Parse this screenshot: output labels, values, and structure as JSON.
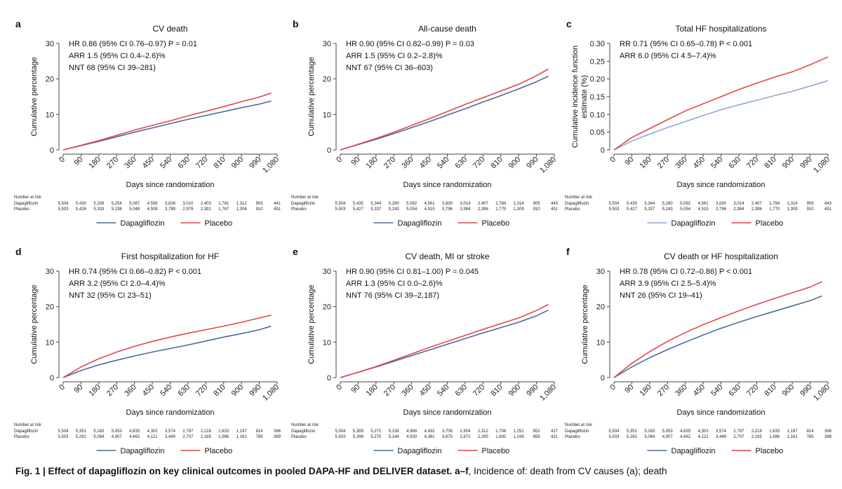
{
  "chart_data": [
    {
      "letter": "a",
      "type": "line",
      "title": "CV death",
      "stats": [
        "HR 0.86 (95% CI 0.76–0.97) P = 0.01",
        "ARR 1.5 (95% CI 0.4–2.6)%",
        "NNT 68 (95% CI 39–281)"
      ],
      "xlabel": "Days since randomization",
      "ylabel": "Cumulative percentage",
      "x_ticks": [
        "0",
        "90",
        "180",
        "270",
        "360",
        "450",
        "540",
        "630",
        "720",
        "810",
        "900",
        "990",
        "1,080"
      ],
      "y_ticks": [
        "0",
        "10",
        "20",
        "30"
      ],
      "xlim": [
        0,
        1080
      ],
      "ylim": [
        0,
        30
      ],
      "x": [
        0,
        90,
        180,
        270,
        360,
        450,
        540,
        630,
        720,
        810,
        900,
        990,
        1050
      ],
      "series": [
        {
          "name": "Dapagliflozin",
          "color": "#4a6a9a",
          "values": [
            0,
            1.2,
            2.4,
            3.7,
            5.0,
            6.2,
            7.4,
            8.6,
            9.7,
            10.8,
            11.9,
            12.9,
            13.8
          ]
        },
        {
          "name": "Placebo",
          "color": "#e0474c",
          "values": [
            0,
            1.3,
            2.6,
            4.1,
            5.6,
            6.9,
            8.2,
            9.6,
            10.9,
            12.2,
            13.6,
            14.9,
            16.0
          ]
        }
      ],
      "risk": {
        "label": "Number at risk",
        "rows": [
          {
            "name": "Dapagliflozin",
            "values": [
              "5,504",
              "5,430",
              "5,339",
              "5,254",
              "5,087",
              "4,556",
              "3,826",
              "3,010",
              "2,403",
              "1,781",
              "1,312",
              "903",
              "441"
            ]
          },
          {
            "name": "Placebo",
            "values": [
              "5,503",
              "5,426",
              "5,333",
              "5,238",
              "5,048",
              "4,508",
              "3,789",
              "2,978",
              "2,391",
              "1,767",
              "1,306",
              "910",
              "451"
            ]
          }
        ]
      },
      "legend": [
        "Dapagliflozin",
        "Placebo"
      ]
    },
    {
      "letter": "b",
      "type": "line",
      "title": "All-cause death",
      "stats": [
        "HR 0.90 (95% CI 0.82–0.99) P = 0.03",
        "ARR 1.5 (95% CI 0.2–2.8)%",
        "NNT 67 (95% CI 36–603)"
      ],
      "xlabel": "Days since randomization",
      "ylabel": "Cumulative percentage",
      "x_ticks": [
        "0",
        "90",
        "180",
        "270",
        "360",
        "450",
        "540",
        "630",
        "720",
        "810",
        "900",
        "990",
        "1,080"
      ],
      "y_ticks": [
        "0",
        "10",
        "20",
        "30"
      ],
      "xlim": [
        0,
        1080
      ],
      "ylim": [
        0,
        30
      ],
      "x": [
        0,
        90,
        180,
        270,
        360,
        450,
        540,
        630,
        720,
        810,
        900,
        990,
        1050
      ],
      "series": [
        {
          "name": "Dapagliflozin",
          "color": "#4a6a9a",
          "values": [
            0,
            1.5,
            3.0,
            4.6,
            6.3,
            8.0,
            9.8,
            11.6,
            13.5,
            15.3,
            17.2,
            19.2,
            20.8
          ]
        },
        {
          "name": "Placebo",
          "color": "#e0474c",
          "values": [
            0,
            1.6,
            3.2,
            5.0,
            6.9,
            8.8,
            10.8,
            12.8,
            14.7,
            16.6,
            18.5,
            20.9,
            22.8
          ]
        }
      ],
      "risk": {
        "label": "Number at risk",
        "rows": [
          {
            "name": "Dapagliflozin",
            "values": [
              "5,504",
              "5,435",
              "5,344",
              "5,260",
              "5,092",
              "4,561",
              "3,830",
              "3,014",
              "2,407",
              "1,784",
              "1,314",
              "905",
              "443"
            ]
          },
          {
            "name": "Placebo",
            "values": [
              "5,503",
              "5,427",
              "5,337",
              "5,243",
              "5,054",
              "4,515",
              "3,796",
              "2,984",
              "2,396",
              "1,770",
              "1,309",
              "910",
              "451"
            ]
          }
        ]
      },
      "legend": [
        "Dapagliflozin",
        "Placebo"
      ]
    },
    {
      "letter": "c",
      "type": "line",
      "title": "Total HF hospitalizations",
      "stats": [
        "RR 0.71 (95% CI 0.65–0.78) P < 0.001",
        "ARR 6.0 (95% CI 4.5–7.4)%"
      ],
      "xlabel": "Days since randomization",
      "ylabel": "Cumulative incidence function estimate (%)",
      "x_ticks": [
        "0",
        "90",
        "180",
        "270",
        "360",
        "450",
        "540",
        "630",
        "720",
        "810",
        "900",
        "990",
        "1,080"
      ],
      "y_ticks": [
        "0",
        "0.05",
        "0.10",
        "0.15",
        "0.20",
        "0.25",
        "0.30"
      ],
      "xlim": [
        0,
        1080
      ],
      "ylim": [
        0,
        0.3
      ],
      "x": [
        0,
        90,
        180,
        270,
        360,
        450,
        540,
        630,
        720,
        810,
        900,
        990,
        1080
      ],
      "series": [
        {
          "name": "Dapagliflozin",
          "color": "#8da9cf",
          "values": [
            0,
            0.025,
            0.045,
            0.063,
            0.08,
            0.097,
            0.113,
            0.127,
            0.14,
            0.153,
            0.165,
            0.18,
            0.195
          ]
        },
        {
          "name": "Placebo",
          "color": "#e0474c",
          "values": [
            0,
            0.035,
            0.06,
            0.085,
            0.11,
            0.13,
            0.15,
            0.17,
            0.188,
            0.205,
            0.22,
            0.24,
            0.262
          ]
        }
      ],
      "risk": {
        "label": "Number at risk",
        "rows": [
          {
            "name": "Dapagliflozin",
            "values": [
              "5,504",
              "5,435",
              "5,344",
              "5,260",
              "5,092",
              "4,561",
              "3,830",
              "3,014",
              "2,407",
              "1,784",
              "1,314",
              "905",
              "443"
            ]
          },
          {
            "name": "Placebo",
            "values": [
              "5,503",
              "5,427",
              "5,337",
              "5,243",
              "5,054",
              "4,515",
              "3,796",
              "2,984",
              "2,396",
              "1,770",
              "1,309",
              "910",
              "451"
            ]
          }
        ]
      },
      "legend": [
        "Dapagliflozin",
        "Placebo"
      ]
    },
    {
      "letter": "d",
      "type": "line",
      "title": "First hospitalization for HF",
      "stats": [
        "HR 0.74 (95% CI 0.66–0.82) P < 0.001",
        "ARR 3.2 (95% CI 2.0–4.4)%",
        "NNT 32 (95% CI 23–51)"
      ],
      "xlabel": "Days since randomization",
      "ylabel": "Cumulative percentage",
      "x_ticks": [
        "0",
        "90",
        "180",
        "270",
        "360",
        "450",
        "540",
        "630",
        "720",
        "810",
        "900",
        "990",
        "1,080"
      ],
      "y_ticks": [
        "0",
        "10",
        "20",
        "30"
      ],
      "xlim": [
        0,
        1080
      ],
      "ylim": [
        0,
        30
      ],
      "x": [
        0,
        90,
        180,
        270,
        360,
        450,
        540,
        630,
        720,
        810,
        900,
        990,
        1050
      ],
      "series": [
        {
          "name": "Dapagliflozin",
          "color": "#4a6a9a",
          "values": [
            0,
            2.0,
            3.6,
            4.9,
            6.1,
            7.2,
            8.2,
            9.2,
            10.3,
            11.4,
            12.4,
            13.5,
            14.5
          ]
        },
        {
          "name": "Placebo",
          "color": "#e0474c",
          "values": [
            0,
            3.0,
            5.3,
            7.2,
            8.8,
            10.2,
            11.4,
            12.5,
            13.5,
            14.5,
            15.6,
            16.8,
            17.6
          ]
        }
      ],
      "risk": {
        "label": "Number at risk",
        "rows": [
          {
            "name": "Dapagliflozin",
            "values": [
              "5,504",
              "5,351",
              "5,183",
              "5,053",
              "4,835",
              "4,302",
              "3,574",
              "2,787",
              "2,218",
              "1,633",
              "1,197",
              "814",
              "396"
            ]
          },
          {
            "name": "Placebo",
            "values": [
              "5,503",
              "5,282",
              "5,084",
              "4,907",
              "4,662",
              "4,121",
              "3,449",
              "2,707",
              "2,165",
              "1,586",
              "1,161",
              "785",
              "389"
            ]
          }
        ]
      },
      "legend": [
        "Dapagliflozin",
        "Placebo"
      ]
    },
    {
      "letter": "e",
      "type": "line",
      "title": "CV death, MI or stroke",
      "stats": [
        "HR 0.90 (95% CI 0.81–1.00) P = 0.045",
        "ARR 1.3 (95% CI 0.0–2.6)%",
        "NNT 76 (95% CI 39–2,187)"
      ],
      "xlabel": "Days since randomization",
      "ylabel": "Cumulative percentage",
      "x_ticks": [
        "0",
        "90",
        "180",
        "270",
        "360",
        "450",
        "540",
        "630",
        "720",
        "810",
        "900",
        "990",
        "1,080"
      ],
      "y_ticks": [
        "0",
        "10",
        "20",
        "30"
      ],
      "xlim": [
        0,
        1080
      ],
      "ylim": [
        0,
        30
      ],
      "x": [
        0,
        90,
        180,
        270,
        360,
        450,
        540,
        630,
        720,
        810,
        900,
        990,
        1050
      ],
      "series": [
        {
          "name": "Dapagliflozin",
          "color": "#4a6a9a",
          "values": [
            0,
            1.5,
            3.0,
            4.6,
            6.2,
            7.8,
            9.4,
            11.0,
            12.6,
            14.1,
            15.6,
            17.4,
            19.0
          ]
        },
        {
          "name": "Placebo",
          "color": "#e0474c",
          "values": [
            0,
            1.5,
            3.1,
            4.9,
            6.7,
            8.5,
            10.2,
            11.9,
            13.6,
            15.2,
            16.8,
            18.9,
            20.6
          ]
        }
      ],
      "risk": {
        "label": "Number at risk",
        "rows": [
          {
            "name": "Dapagliflozin",
            "values": [
              "5,504",
              "5,389",
              "5,271",
              "5,158",
              "4,968",
              "4,432",
              "3,706",
              "2,904",
              "2,312",
              "1,706",
              "1,251",
              "852",
              "417"
            ]
          },
          {
            "name": "Placebo",
            "values": [
              "5,503",
              "5,396",
              "5,270",
              "5,144",
              "4,930",
              "4,381",
              "3,675",
              "2,872",
              "2,295",
              "1,692",
              "1,243",
              "859",
              "421"
            ]
          }
        ]
      },
      "legend": [
        "Dapagliflozin",
        "Placebo"
      ]
    },
    {
      "letter": "f",
      "type": "line",
      "title": "CV death or HF hospitalization",
      "stats": [
        "HR 0.78 (95% CI 0.72–0.86) P < 0.001",
        "ARR 3.9 (95% CI 2.5–5.4)%",
        "NNT 26 (95% CI 19–41)"
      ],
      "xlabel": "Days since randomization",
      "ylabel": "Cumulative percentage",
      "x_ticks": [
        "0",
        "90",
        "180",
        "270",
        "360",
        "450",
        "540",
        "630",
        "720",
        "810",
        "900",
        "990",
        "1,080"
      ],
      "y_ticks": [
        "0",
        "10",
        "20",
        "30"
      ],
      "xlim": [
        0,
        1080
      ],
      "ylim": [
        0,
        30
      ],
      "x": [
        0,
        90,
        180,
        270,
        360,
        450,
        540,
        630,
        720,
        810,
        900,
        990,
        1050
      ],
      "series": [
        {
          "name": "Dapagliflozin",
          "color": "#4a6a9a",
          "values": [
            0,
            3.0,
            5.6,
            7.9,
            10.0,
            12.0,
            13.9,
            15.6,
            17.2,
            18.7,
            20.2,
            21.7,
            23.0
          ]
        },
        {
          "name": "Placebo",
          "color": "#e0474c",
          "values": [
            0,
            4.0,
            7.3,
            10.2,
            12.7,
            14.9,
            16.9,
            18.8,
            20.6,
            22.3,
            23.9,
            25.5,
            27.0
          ]
        }
      ],
      "risk": {
        "label": "Number at risk",
        "rows": [
          {
            "name": "Dapagliflozin",
            "values": [
              "5,504",
              "5,351",
              "5,183",
              "5,053",
              "4,835",
              "4,302",
              "3,574",
              "2,787",
              "2,218",
              "1,633",
              "1,197",
              "814",
              "396"
            ]
          },
          {
            "name": "Placebo",
            "values": [
              "5,503",
              "5,282",
              "5,084",
              "4,907",
              "4,662",
              "4,121",
              "3,449",
              "2,707",
              "2,165",
              "1,586",
              "1,161",
              "785",
              "389"
            ]
          }
        ]
      },
      "legend": [
        "Dapagliflozin",
        "Placebo"
      ]
    }
  ],
  "caption": {
    "label": "Fig. 1 | Effect of dapagliflozin on key clinical outcomes in pooled DAPA-HF and DELIVER dataset. a–f",
    "text": ", Incidence of: death from CV causes (a); death"
  }
}
